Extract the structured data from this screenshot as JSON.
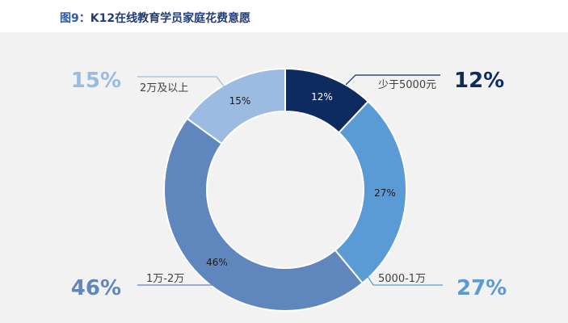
{
  "title": {
    "prefix": "图9：",
    "text": "K12在线教育学员家庭花费意愿"
  },
  "chart_data": {
    "type": "pie",
    "variant": "donut",
    "title": "图9：K12在线教育学员家庭花费意愿",
    "categories": [
      "少于5000元",
      "5000-1万",
      "1万-2万",
      "2万及以上"
    ],
    "values": [
      12,
      27,
      46,
      15
    ],
    "value_labels": [
      "12%",
      "27%",
      "46%",
      "15%"
    ],
    "colors": [
      "#0d2b5e",
      "#5b9bd5",
      "#5f87bd",
      "#9bbbe0"
    ],
    "unit": "%"
  }
}
